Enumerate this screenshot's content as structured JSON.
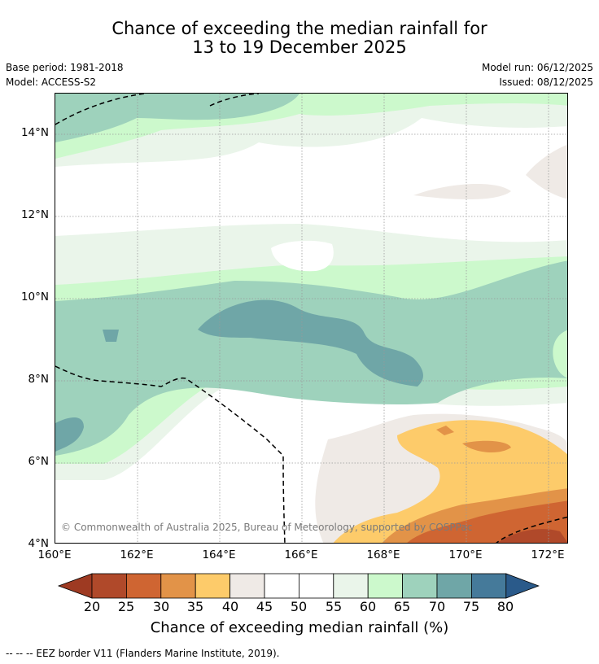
{
  "header": {
    "title_line1": "Chance of exceeding the median rainfall for",
    "title_line2": "13 to 19 December 2025"
  },
  "meta": {
    "base_period": "Base period: 1981-2018",
    "model": "Model: ACCESS-S2",
    "model_run": "Model run: 06/12/2025",
    "issued": "Issued: 08/12/2025"
  },
  "map": {
    "lat_labels": [
      "14°N",
      "12°N",
      "10°N",
      "8°N",
      "6°N",
      "4°N"
    ],
    "lon_labels": [
      "160°E",
      "162°E",
      "164°E",
      "166°E",
      "168°E",
      "170°E",
      "172°E"
    ],
    "copyright": "© Commonwealth of Australia 2025, Bureau of Meteorology, supported by COSPPac"
  },
  "colorbar": {
    "labels": [
      "20",
      "25",
      "30",
      "35",
      "40",
      "45",
      "50",
      "55",
      "60",
      "65",
      "70",
      "75",
      "80"
    ],
    "colors": [
      "#9e3a22",
      "#b0492a",
      "#cf6532",
      "#e29348",
      "#fdcb6a",
      "#efeae6",
      "#ffffff",
      "#ffffff",
      "#eaf5ea",
      "#ccf9cc",
      "#9ed2bc",
      "#6fa6a7",
      "#457a9a",
      "#2a5a8a"
    ],
    "title": "Chance of exceeding median rainfall (%)"
  },
  "footnote": "--  --  -- EEZ border V11 (Flanders Marine Institute, 2019)."
}
